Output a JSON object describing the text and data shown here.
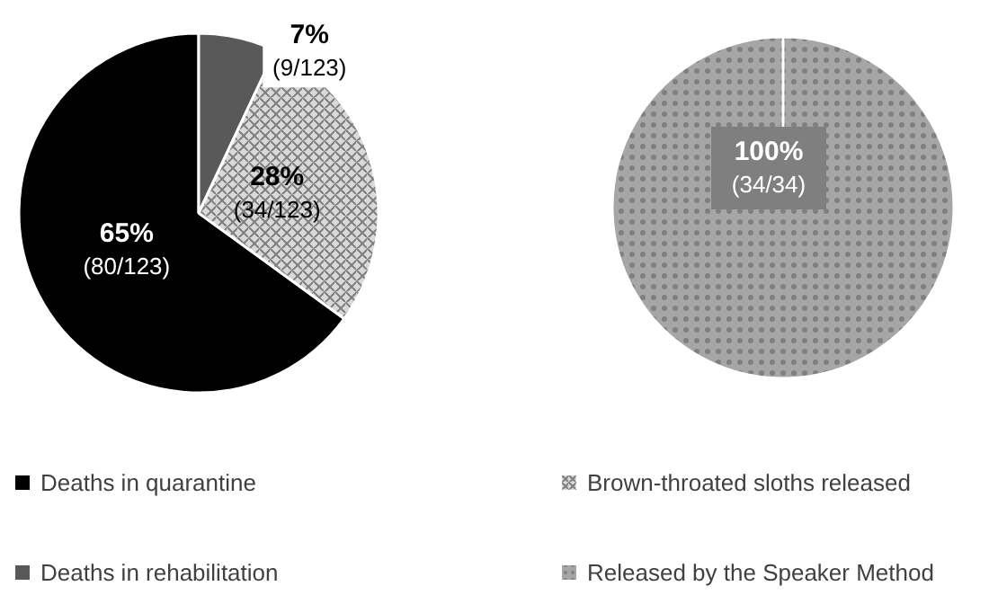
{
  "chart_data": [
    {
      "type": "pie",
      "categories": [
        "Deaths in quarantine",
        "Deaths in rehabilitation",
        "Brown-throated sloths released"
      ],
      "values": [
        65,
        7,
        28
      ],
      "colors": [
        "#000000",
        "#595959",
        "#d9d9d9"
      ],
      "value_labels": [
        "65%\n(80/123)",
        "7%\n(9/123)",
        "28%\n(34/123)"
      ],
      "legend": "bottom"
    },
    {
      "type": "pie",
      "categories": [
        "Released by the Speaker Method"
      ],
      "values": [
        100
      ],
      "colors": [
        "#a6a6a6"
      ],
      "value_labels": [
        "100%\n(34/34)"
      ],
      "legend": "bottom"
    }
  ]
}
